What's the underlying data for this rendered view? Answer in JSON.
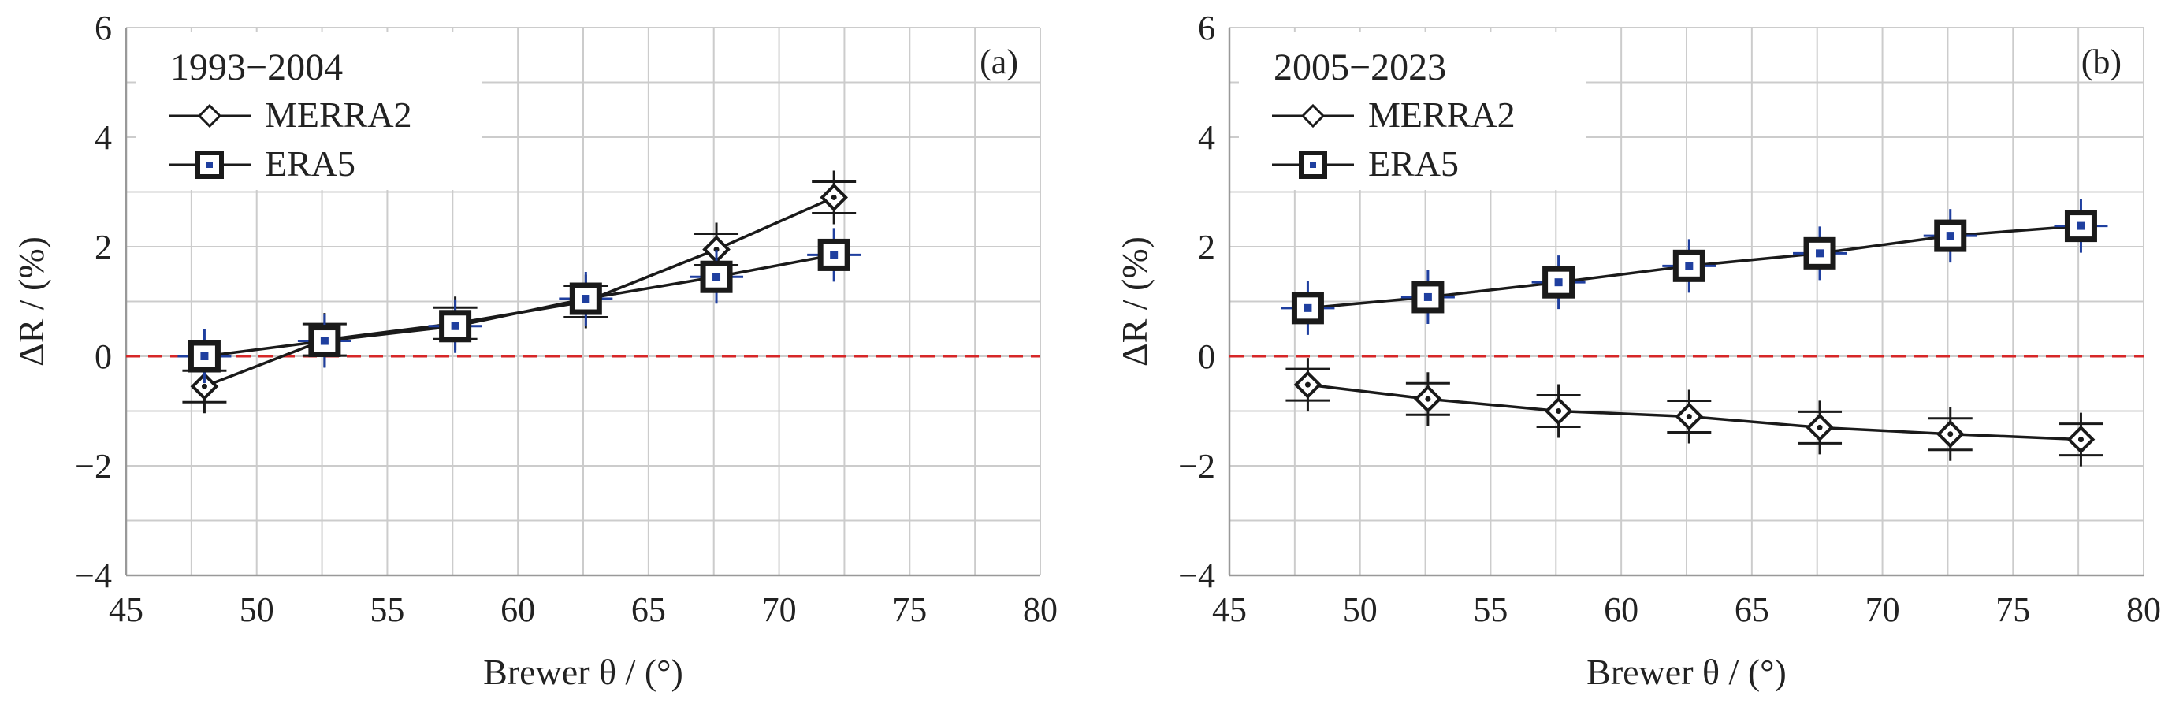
{
  "panels": [
    {
      "tag": "(a)",
      "legend_title": "1993−2004",
      "xlabel": "Brewer θ / (°)",
      "ylabel": "ΔR / (%)",
      "x_ticks": [
        "45",
        "50",
        "55",
        "60",
        "65",
        "70",
        "75",
        "80"
      ],
      "y_ticks": [
        "6",
        "4",
        "2",
        "0",
        "−2",
        "−4"
      ]
    },
    {
      "tag": "(b)",
      "legend_title": "2005−2023",
      "xlabel": "Brewer θ / (°)",
      "ylabel": "ΔR / (%)",
      "x_ticks": [
        "45",
        "50",
        "55",
        "60",
        "65",
        "70",
        "75",
        "80"
      ],
      "y_ticks": [
        "6",
        "4",
        "2",
        "0",
        "−2",
        "−4"
      ]
    }
  ],
  "colors": {
    "series": "#1a1a1a",
    "grid": "#cccccc",
    "reference_line": "#d62728",
    "marker_center": "#1f3f9f"
  },
  "chart_data": [
    {
      "type": "line",
      "panel": "(a)",
      "title": "1993−2004",
      "xlabel": "Brewer θ / (°)",
      "ylabel": "ΔR / (%)",
      "xlim": [
        45,
        80
      ],
      "ylim": [
        -4,
        6
      ],
      "x_ticks": [
        45,
        50,
        55,
        60,
        65,
        70,
        75,
        80
      ],
      "y_ticks": [
        -4,
        -2,
        0,
        2,
        4,
        6
      ],
      "grid": true,
      "legend_position": "top-left",
      "reference_line_y": 0,
      "series": [
        {
          "name": "MERRA2",
          "marker": "diamond",
          "x": [
            48,
            52.6,
            57.6,
            62.6,
            67.6,
            72.1
          ],
          "y": [
            -0.55,
            0.3,
            0.6,
            1.0,
            1.95,
            2.9
          ]
        },
        {
          "name": "ERA5",
          "marker": "square",
          "x": [
            48,
            52.6,
            57.6,
            62.6,
            67.6,
            72.1
          ],
          "y": [
            0.0,
            0.28,
            0.55,
            1.05,
            1.45,
            1.85
          ]
        }
      ]
    },
    {
      "type": "line",
      "panel": "(b)",
      "title": "2005−2023",
      "xlabel": "Brewer θ / (°)",
      "ylabel": "ΔR / (%)",
      "xlim": [
        45,
        80
      ],
      "ylim": [
        -4,
        6
      ],
      "x_ticks": [
        45,
        50,
        55,
        60,
        65,
        70,
        75,
        80
      ],
      "y_ticks": [
        -4,
        -2,
        0,
        2,
        4,
        6
      ],
      "grid": true,
      "legend_position": "top-left",
      "reference_line_y": 0,
      "series": [
        {
          "name": "MERRA2",
          "marker": "diamond",
          "x": [
            48,
            52.6,
            57.6,
            62.6,
            67.6,
            72.6,
            77.6
          ],
          "y": [
            -0.52,
            -0.78,
            -1.0,
            -1.1,
            -1.3,
            -1.42,
            -1.52
          ]
        },
        {
          "name": "ERA5",
          "marker": "square",
          "x": [
            48,
            52.6,
            57.6,
            62.6,
            67.6,
            72.6,
            77.6
          ],
          "y": [
            0.88,
            1.08,
            1.35,
            1.65,
            1.88,
            2.2,
            2.38
          ]
        }
      ]
    }
  ]
}
